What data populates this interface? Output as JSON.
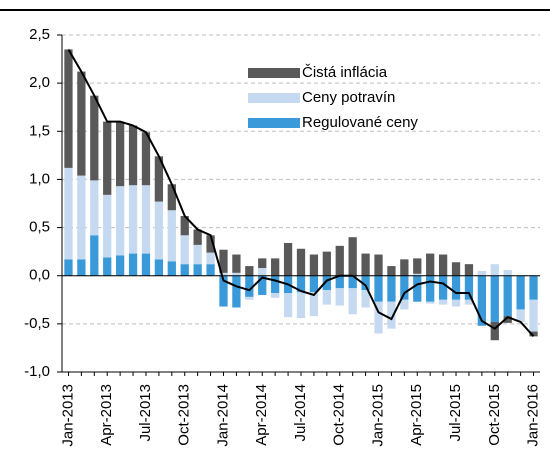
{
  "chart_data": {
    "type": "stacked_bar_line",
    "categories": [
      "Jan-2013",
      null,
      null,
      "Apr-2013",
      null,
      null,
      "Jul-2013",
      null,
      null,
      "Oct-2013",
      null,
      null,
      "Jan-2014",
      null,
      null,
      "Apr-2014",
      null,
      null,
      "Jul-2014",
      null,
      null,
      "Oct-2014",
      null,
      null,
      "Jan-2015",
      null,
      null,
      "Apr-2015",
      null,
      null,
      "Jul-2015",
      null,
      null,
      "Oct-2015",
      null,
      null,
      "Jan-2016"
    ],
    "series": [
      {
        "name": "Regulované ceny",
        "color": "#3a9ad9",
        "values": [
          0.17,
          0.17,
          0.42,
          0.19,
          0.21,
          0.23,
          0.23,
          0.17,
          0.15,
          0.12,
          0.12,
          0.12,
          -0.32,
          -0.33,
          -0.22,
          -0.2,
          -0.18,
          -0.18,
          -0.17,
          -0.17,
          -0.15,
          -0.13,
          -0.13,
          -0.15,
          -0.27,
          -0.27,
          -0.25,
          -0.27,
          -0.27,
          -0.25,
          -0.25,
          -0.25,
          -0.52,
          -0.48,
          -0.42,
          -0.35,
          -0.25
        ]
      },
      {
        "name": "Ceny potravín",
        "color": "#c5d9f1",
        "values": [
          0.95,
          0.87,
          0.57,
          0.65,
          0.72,
          0.71,
          0.71,
          0.6,
          0.53,
          0.3,
          0.2,
          0.12,
          0.03,
          0.03,
          -0.03,
          0.08,
          -0.05,
          -0.25,
          -0.27,
          -0.25,
          -0.15,
          -0.18,
          -0.27,
          -0.18,
          -0.33,
          -0.28,
          -0.1,
          0.02,
          -0.02,
          -0.05,
          -0.07,
          -0.05,
          0.05,
          0.12,
          0.06,
          -0.13,
          -0.33
        ]
      },
      {
        "name": "Čistá inflácia",
        "color": "#595959",
        "values": [
          1.23,
          1.08,
          0.88,
          0.76,
          0.67,
          0.62,
          0.55,
          0.47,
          0.27,
          0.2,
          0.16,
          0.18,
          0.24,
          0.19,
          0.1,
          0.1,
          0.18,
          0.34,
          0.28,
          0.22,
          0.25,
          0.31,
          0.4,
          0.23,
          0.22,
          0.1,
          0.17,
          0.16,
          0.23,
          0.22,
          0.14,
          0.12,
          0.0,
          -0.19,
          -0.07,
          0.0,
          -0.05
        ]
      }
    ],
    "total": {
      "color": "#000000",
      "values": [
        2.35,
        2.12,
        1.87,
        1.6,
        1.6,
        1.56,
        1.49,
        1.24,
        0.95,
        0.62,
        0.48,
        0.42,
        -0.05,
        -0.11,
        -0.15,
        -0.02,
        -0.05,
        -0.09,
        -0.16,
        -0.2,
        -0.05,
        0.0,
        0.0,
        -0.1,
        -0.38,
        -0.45,
        -0.18,
        -0.09,
        -0.06,
        -0.08,
        -0.18,
        -0.18,
        -0.47,
        -0.55,
        -0.43,
        -0.48,
        -0.63
      ]
    },
    "ylim": [
      -1.0,
      2.5
    ],
    "yticks": [
      {
        "value": 2.5,
        "label": "2,5"
      },
      {
        "value": 2.0,
        "label": "2,0"
      },
      {
        "value": 1.5,
        "label": "1,5"
      },
      {
        "value": 1.0,
        "label": "1,0"
      },
      {
        "value": 0.5,
        "label": "0,5"
      },
      {
        "value": 0.0,
        "label": "0,0"
      },
      {
        "value": -0.5,
        "label": "-0,5"
      },
      {
        "value": -1.0,
        "label": "-1,0"
      }
    ],
    "grid": true,
    "legend": "top"
  }
}
